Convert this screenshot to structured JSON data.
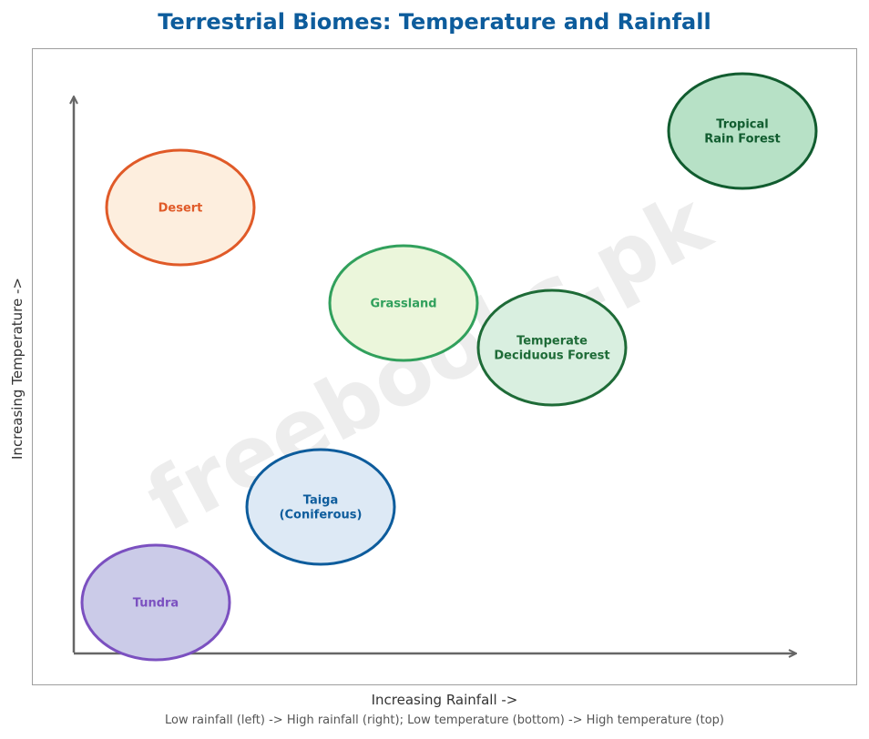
{
  "title": "Terrestrial Biomes: Temperature and Rainfall",
  "x_axis_label": "Increasing Rainfall ->",
  "y_axis_label": "Increasing Temperature ->",
  "caption": "Low rainfall (left) -> High rainfall (right); Low temperature (bottom) -> High temperature (top)",
  "watermark": "freebooks.pk",
  "biomes": [
    {
      "id": "desert",
      "lines": [
        "Desert"
      ],
      "stroke": "#e05a28",
      "fill": "#fdeede",
      "text_color": "#e05a28"
    },
    {
      "id": "tropical-rain-forest",
      "lines": [
        "Tropical",
        "Rain Forest"
      ],
      "stroke": "#115c2f",
      "fill": "#b7e1c6",
      "text_color": "#115c2f"
    },
    {
      "id": "grassland",
      "lines": [
        "Grassland"
      ],
      "stroke": "#31a05c",
      "fill": "#ebf6db",
      "text_color": "#31a05c"
    },
    {
      "id": "temperate-deciduous-forest",
      "lines": [
        "Temperate",
        "Deciduous Forest"
      ],
      "stroke": "#1e6b37",
      "fill": "#d9efe0",
      "text_color": "#1e6b37"
    },
    {
      "id": "taiga",
      "lines": [
        "Taiga",
        "(Coniferous)"
      ],
      "stroke": "#0d5c9c",
      "fill": "#dde9f5",
      "text_color": "#0d5c9c"
    },
    {
      "id": "tundra",
      "lines": [
        "Tundra"
      ],
      "stroke": "#7b50c0",
      "fill": "#cbcbe8",
      "text_color": "#7b50c0"
    }
  ]
}
